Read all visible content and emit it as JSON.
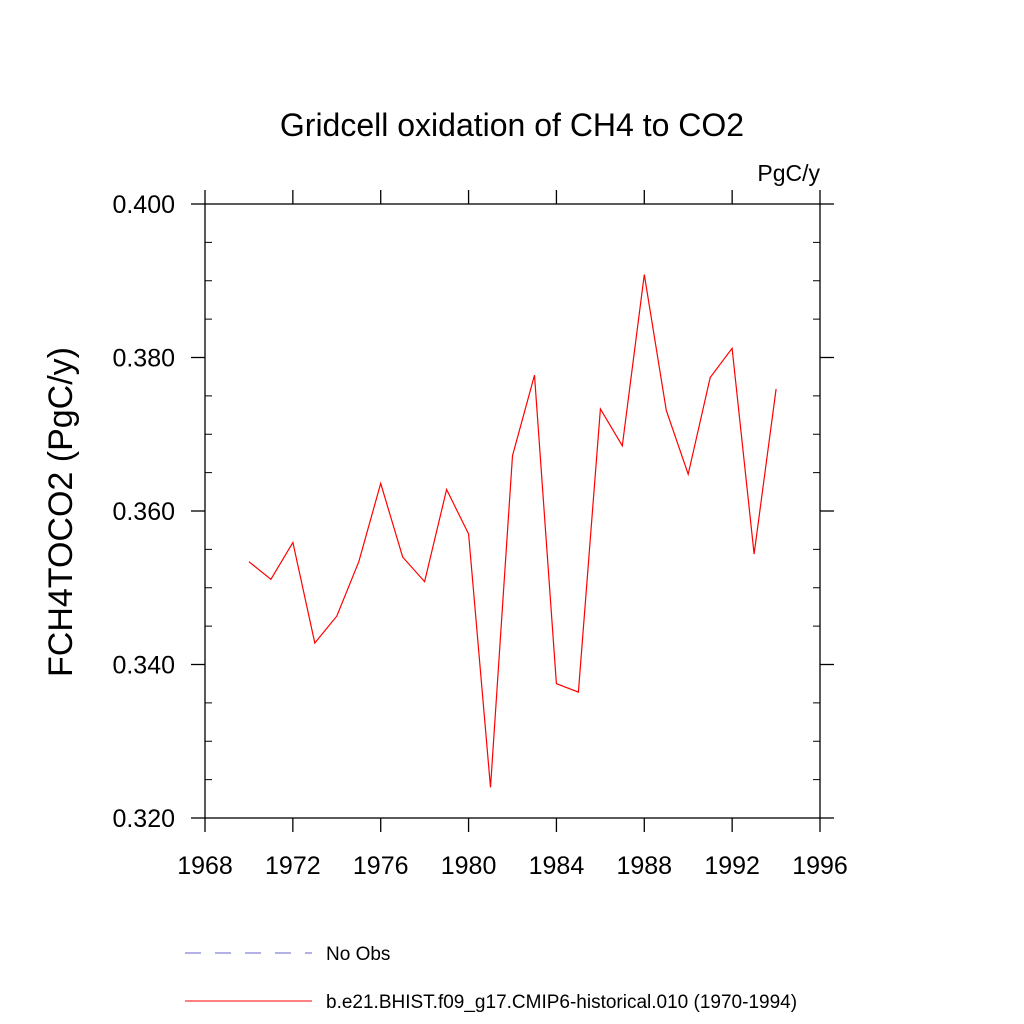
{
  "chart_data": {
    "type": "line",
    "title": "Gridcell oxidation of CH4 to CO2",
    "units": "PgC/y",
    "xlabel": "",
    "ylabel": "FCH4TOCO2  (PgC/y)",
    "xlim": [
      1968,
      1996
    ],
    "ylim": [
      0.32,
      0.4
    ],
    "x_ticks": [
      1968,
      1972,
      1976,
      1980,
      1984,
      1988,
      1992,
      1996
    ],
    "x_tick_labels": [
      "1968",
      "1972",
      "1976",
      "1980",
      "1984",
      "1988",
      "1992",
      "1996"
    ],
    "y_ticks": [
      0.32,
      0.34,
      0.36,
      0.38,
      0.4
    ],
    "y_tick_labels": [
      "0.320",
      "0.340",
      "0.360",
      "0.380",
      "0.400"
    ],
    "grid": false,
    "legend_position": "bottom",
    "series": [
      {
        "name": "b.e21.BHIST.f09_g17.CMIP6-historical.010 (1970-1994)",
        "color": "#ff0000",
        "style": "solid",
        "x": [
          1970,
          1971,
          1972,
          1973,
          1974,
          1975,
          1976,
          1977,
          1978,
          1979,
          1980,
          1981,
          1982,
          1983,
          1984,
          1985,
          1986,
          1987,
          1988,
          1989,
          1990,
          1991,
          1992,
          1993,
          1994
        ],
        "values": [
          0.3534,
          0.3511,
          0.3559,
          0.3428,
          0.3463,
          0.3534,
          0.3636,
          0.354,
          0.3508,
          0.3628,
          0.357,
          0.324,
          0.3672,
          0.3777,
          0.3375,
          0.3364,
          0.3733,
          0.3685,
          0.3908,
          0.3731,
          0.3648,
          0.3774,
          0.3812,
          0.3544,
          0.3759
        ]
      }
    ],
    "legend": [
      {
        "label": "No Obs",
        "color": "#6666cc",
        "style": "dashed"
      },
      {
        "label": "b.e21.BHIST.f09_g17.CMIP6-historical.010 (1970-1994)",
        "color": "#ff0000",
        "style": "solid"
      }
    ]
  }
}
